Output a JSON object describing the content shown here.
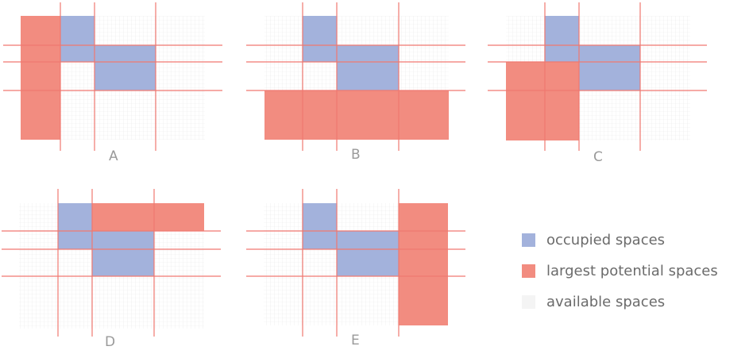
{
  "colors": {
    "occupied": "#a3b2dc",
    "potential": "#f28c80",
    "available": "#f4f4f4",
    "grid": "#e6e6e6",
    "cut_line": "#f07870"
  },
  "panels": [
    {
      "label": "A",
      "highlight": "left-strip"
    },
    {
      "label": "B",
      "highlight": "bottom-strip"
    },
    {
      "label": "C",
      "highlight": "left-bottom-block"
    },
    {
      "label": "D",
      "highlight": "top-strip"
    },
    {
      "label": "E",
      "highlight": "right-strip"
    }
  ],
  "legend": {
    "items": [
      {
        "label": "occupied spaces",
        "color": "#a3b2dc"
      },
      {
        "label": "largest potential spaces",
        "color": "#f28c80"
      },
      {
        "label": "available spaces",
        "color": "#f4f4f4"
      }
    ]
  }
}
